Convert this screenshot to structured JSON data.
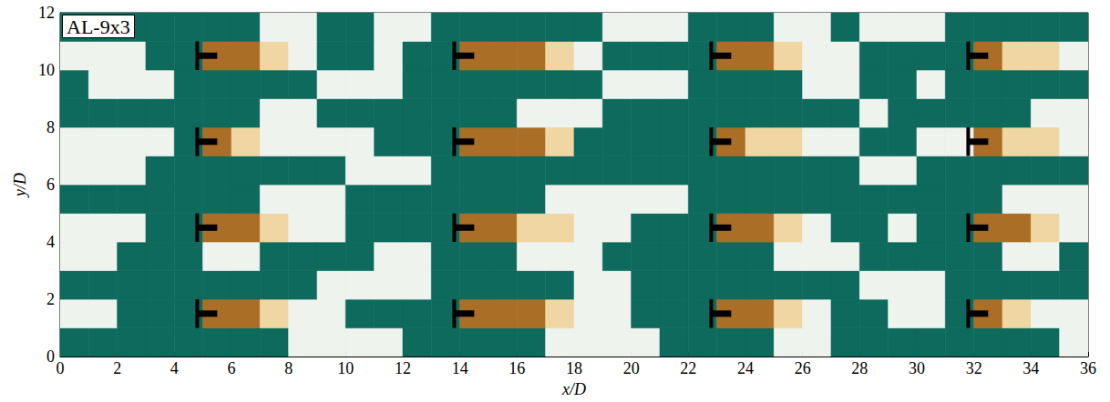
{
  "chart_data": {
    "type": "heatmap",
    "title": "AL-9x3",
    "x_label": "x/D",
    "y_label": "y/D",
    "xlim": [
      0,
      36
    ],
    "ylim": [
      0,
      12
    ],
    "xticks": [
      0,
      2,
      4,
      6,
      8,
      10,
      12,
      14,
      16,
      18,
      20,
      22,
      24,
      26,
      28,
      30,
      32,
      34,
      36
    ],
    "yticks": [
      0,
      2,
      4,
      6,
      8,
      10,
      12
    ],
    "grid": false,
    "x_bins": [
      0,
      1,
      2,
      3,
      4,
      5,
      6,
      7,
      8,
      9,
      10,
      11,
      12,
      13,
      14,
      15,
      16,
      17,
      18,
      19,
      20,
      21,
      22,
      23,
      24,
      25,
      26,
      27,
      28,
      29,
      30,
      31,
      32,
      33,
      34,
      35,
      36
    ],
    "y_bins": [
      0,
      1,
      2,
      3,
      4,
      5,
      6,
      7,
      8,
      9,
      10,
      11,
      12
    ],
    "colors": [
      "#0d6a5c",
      "#eef3ee",
      "#efd6a2",
      "#ab6e27"
    ],
    "cells": [
      [
        0,
        0,
        0,
        0,
        0,
        0,
        0,
        0,
        1,
        1,
        1,
        1,
        0,
        0,
        0,
        0,
        0,
        1,
        1,
        1,
        1,
        0,
        0,
        0,
        0,
        1,
        1,
        0,
        0,
        0,
        0,
        0,
        0,
        0,
        0,
        1
      ],
      [
        1,
        1,
        0,
        0,
        0,
        3,
        3,
        2,
        1,
        1,
        0,
        0,
        0,
        0,
        3,
        3,
        3,
        2,
        1,
        1,
        0,
        0,
        0,
        3,
        3,
        2,
        1,
        0,
        0,
        1,
        1,
        0,
        3,
        2,
        1,
        1
      ],
      [
        0,
        0,
        0,
        0,
        0,
        0,
        0,
        0,
        0,
        1,
        1,
        1,
        1,
        0,
        0,
        0,
        0,
        0,
        1,
        1,
        0,
        0,
        0,
        0,
        0,
        0,
        0,
        0,
        1,
        1,
        1,
        0,
        0,
        0,
        0,
        0
      ],
      [
        1,
        1,
        0,
        0,
        0,
        1,
        1,
        0,
        0,
        0,
        0,
        1,
        1,
        0,
        0,
        0,
        1,
        1,
        1,
        0,
        0,
        0,
        0,
        0,
        0,
        1,
        1,
        1,
        0,
        0,
        0,
        0,
        0,
        1,
        1,
        0
      ],
      [
        1,
        1,
        1,
        0,
        0,
        3,
        3,
        2,
        1,
        1,
        0,
        0,
        0,
        0,
        3,
        3,
        2,
        2,
        1,
        1,
        0,
        0,
        0,
        3,
        3,
        2,
        1,
        0,
        0,
        1,
        0,
        0,
        3,
        3,
        2,
        1
      ],
      [
        0,
        0,
        0,
        0,
        0,
        0,
        0,
        1,
        1,
        1,
        0,
        0,
        0,
        0,
        0,
        0,
        0,
        1,
        1,
        1,
        1,
        1,
        0,
        0,
        0,
        0,
        0,
        0,
        0,
        0,
        0,
        0,
        0,
        1,
        1,
        1
      ],
      [
        1,
        1,
        1,
        0,
        0,
        0,
        0,
        0,
        0,
        0,
        1,
        1,
        1,
        0,
        0,
        0,
        0,
        0,
        0,
        0,
        0,
        0,
        0,
        0,
        0,
        0,
        0,
        0,
        1,
        1,
        0,
        0,
        0,
        0,
        0,
        0
      ],
      [
        1,
        1,
        1,
        1,
        0,
        3,
        2,
        1,
        1,
        1,
        1,
        0,
        0,
        0,
        3,
        3,
        3,
        2,
        0,
        0,
        0,
        0,
        0,
        3,
        2,
        2,
        1,
        1,
        0,
        0,
        1,
        1,
        3,
        2,
        2,
        1
      ],
      [
        0,
        0,
        0,
        0,
        0,
        0,
        0,
        1,
        1,
        0,
        0,
        0,
        0,
        0,
        0,
        0,
        1,
        1,
        1,
        0,
        0,
        0,
        0,
        0,
        0,
        0,
        0,
        0,
        1,
        0,
        0,
        0,
        0,
        0,
        1,
        1
      ],
      [
        0,
        1,
        1,
        1,
        0,
        0,
        0,
        0,
        0,
        1,
        1,
        1,
        0,
        0,
        0,
        0,
        0,
        0,
        0,
        1,
        1,
        1,
        0,
        0,
        0,
        0,
        1,
        1,
        0,
        0,
        1,
        0,
        0,
        0,
        0,
        0
      ],
      [
        1,
        1,
        1,
        0,
        0,
        3,
        3,
        2,
        1,
        0,
        0,
        1,
        0,
        0,
        3,
        3,
        3,
        2,
        1,
        0,
        0,
        0,
        0,
        3,
        3,
        2,
        1,
        1,
        0,
        0,
        0,
        0,
        3,
        2,
        2,
        1
      ],
      [
        0,
        0,
        0,
        0,
        0,
        0,
        0,
        1,
        1,
        0,
        0,
        1,
        1,
        0,
        0,
        0,
        0,
        0,
        0,
        1,
        1,
        1,
        0,
        0,
        0,
        1,
        1,
        0,
        1,
        1,
        1,
        0,
        0,
        0,
        0,
        0
      ]
    ],
    "turbines": {
      "x": [
        4.8,
        13.8,
        22.8,
        31.8,
        4.8,
        13.8,
        22.8,
        31.8,
        4.8,
        13.8,
        22.8,
        31.8,
        4.8,
        13.8,
        22.8,
        31.8
      ],
      "y": [
        1.5,
        1.5,
        1.5,
        1.5,
        4.5,
        4.5,
        4.5,
        4.5,
        7.5,
        7.5,
        7.5,
        7.5,
        10.5,
        10.5,
        10.5,
        10.5
      ]
    }
  }
}
